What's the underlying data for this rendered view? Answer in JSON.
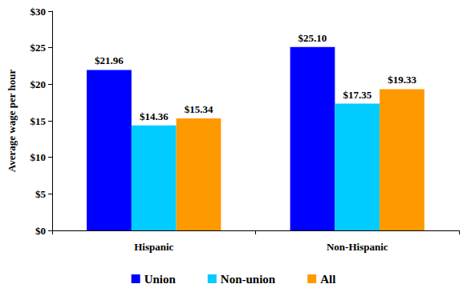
{
  "chart_data": {
    "type": "bar",
    "y_label": "Average wage per hour",
    "categories": [
      "Hispanic",
      "Non-Hispanic"
    ],
    "series": [
      {
        "name": "Union",
        "color": "#0000ff",
        "values": [
          21.96,
          25.1
        ],
        "value_labels": [
          "$21.96",
          "$25.10"
        ]
      },
      {
        "name": "Non-union",
        "color": "#00ccff",
        "values": [
          14.36,
          17.35
        ],
        "value_labels": [
          "$14.36",
          "$17.35"
        ]
      },
      {
        "name": "All",
        "color": "#ff9900",
        "values": [
          15.34,
          19.33
        ],
        "value_labels": [
          "$15.34",
          "$19.33"
        ]
      }
    ],
    "ylim": [
      0,
      30
    ],
    "yticks": [
      {
        "value": 0,
        "label": "$0"
      },
      {
        "value": 5,
        "label": "$5"
      },
      {
        "value": 10,
        "label": "$10"
      },
      {
        "value": 15,
        "label": "$15"
      },
      {
        "value": 20,
        "label": "$20"
      },
      {
        "value": 25,
        "label": "$25"
      },
      {
        "value": 30,
        "label": "$30"
      }
    ],
    "grid": false,
    "legend": "bottom",
    "data_labels": true
  }
}
